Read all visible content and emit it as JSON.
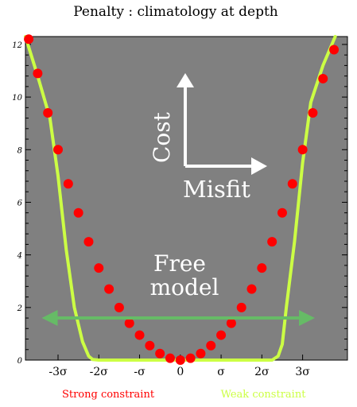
{
  "chart_data": {
    "type": "line",
    "title": "Penalty : climatology at depth",
    "xlim": [
      -3.8,
      4.1
    ],
    "ylim": [
      0,
      12.3
    ],
    "y_ticks": [
      {
        "value": 0,
        "label": "0"
      },
      {
        "value": 2,
        "label": "2"
      },
      {
        "value": 4,
        "label": "4"
      },
      {
        "value": 6,
        "label": "6"
      },
      {
        "value": 8,
        "label": "8"
      },
      {
        "value": 10,
        "label": "10"
      },
      {
        "value": 12,
        "label": "12"
      }
    ],
    "x_ticks": [
      {
        "value": -3,
        "label": "-3σ"
      },
      {
        "value": -2,
        "label": "-2σ"
      },
      {
        "value": -1,
        "label": "-σ"
      },
      {
        "value": 0,
        "label": "0"
      },
      {
        "value": 1,
        "label": "σ"
      },
      {
        "value": 2,
        "label": "2σ"
      },
      {
        "value": 3,
        "label": "3σ"
      }
    ],
    "background_color": "#808080",
    "grid": false,
    "series": [
      {
        "name": "Strong constraint",
        "style": "dots",
        "color": "#ff0000",
        "x": [
          -3.72,
          -3.5,
          -3.25,
          -3.0,
          -2.75,
          -2.5,
          -2.25,
          -2.0,
          -1.75,
          -1.5,
          -1.25,
          -1.0,
          -0.75,
          -0.5,
          -0.25,
          0.0,
          0.25,
          0.5,
          0.75,
          1.0,
          1.25,
          1.5,
          1.75,
          2.0,
          2.25,
          2.5,
          2.75,
          3.0,
          3.25,
          3.5,
          3.77
        ],
        "y": [
          12.2,
          10.9,
          9.4,
          8.0,
          6.7,
          5.6,
          4.5,
          3.5,
          2.7,
          2.0,
          1.4,
          0.95,
          0.55,
          0.25,
          0.07,
          0.0,
          0.07,
          0.25,
          0.55,
          0.95,
          1.4,
          2.0,
          2.7,
          3.5,
          4.5,
          5.6,
          6.7,
          8.0,
          9.4,
          10.7,
          11.8
        ]
      },
      {
        "name": "Weak constraint",
        "style": "line",
        "color": "#ccff44",
        "x": [
          -3.8,
          -3.5,
          -3.2,
          -3.0,
          -2.8,
          -2.6,
          -2.4,
          -2.25,
          -2.15,
          -2.0,
          -1.0,
          0.0,
          1.0,
          2.0,
          2.25,
          2.4,
          2.5,
          2.6,
          2.8,
          3.0,
          3.2,
          3.5,
          3.8
        ],
        "y": [
          12.3,
          10.8,
          9.2,
          7.0,
          4.2,
          2.0,
          0.7,
          0.15,
          0.02,
          0.0,
          0.0,
          0.0,
          0.0,
          0.0,
          0.0,
          0.15,
          0.6,
          2.0,
          4.5,
          7.5,
          9.8,
          11.2,
          12.3
        ]
      }
    ],
    "annotations": {
      "cost_label": "Cost",
      "misfit_label": "Misfit",
      "free_model_line1": "Free",
      "free_model_line2": "model",
      "free_range_x": [
        -3.4,
        3.3
      ],
      "free_range_y": 1.6
    },
    "legend": {
      "placement": "bottom",
      "entries": [
        {
          "label": "Strong constraint",
          "color": "#ff0000"
        },
        {
          "label": "Weak constraint",
          "color": "#ccff44"
        }
      ]
    }
  }
}
